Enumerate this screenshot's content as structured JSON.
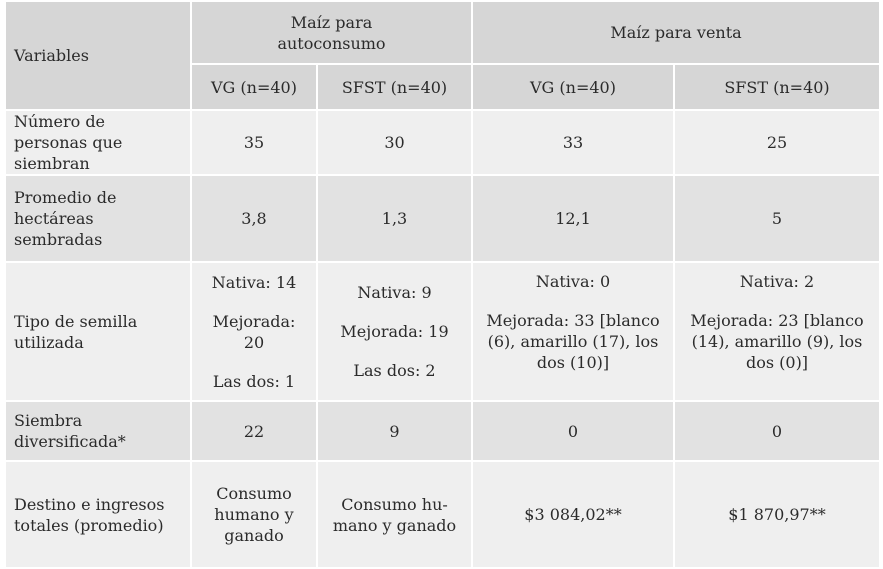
{
  "header": {
    "variables": "Variables",
    "group1": "Maíz para autoconsumo",
    "group2": "Maíz para venta",
    "sub": [
      "VG (n=40)",
      "SFST (n=40)",
      "VG (n=40)",
      "SFST (n=40)"
    ]
  },
  "rows": [
    {
      "label": "Número de personas que siembran",
      "cells": [
        "35",
        "30",
        "33",
        "25"
      ]
    },
    {
      "label": "Promedio de hectáreas sembradas",
      "cells": [
        "3,8",
        "1,3",
        "12,1",
        "5"
      ]
    },
    {
      "label": "Tipo de semilla utilizada",
      "cells": [
        [
          "Nativa: 14",
          "Mejorada: 20",
          "Las dos: 1"
        ],
        [
          "Nativa: 9",
          "Mejorada: 19",
          "Las dos: 2"
        ],
        [
          "Nativa: 0",
          "Mejorada: 33 [blanco (6), amarillo (17), los dos (10)]"
        ],
        [
          "Nativa: 2",
          "Mejorada: 23 [blanco (14), amarillo (9), los dos (0)]"
        ]
      ]
    },
    {
      "label": "Siembra diversificada*",
      "cells": [
        "22",
        "9",
        "0",
        "0"
      ]
    },
    {
      "label": "Destino e ingresos totales (promedio)",
      "cells": [
        "Consumo humano y ganado",
        "Consumo hu-mano y ganado",
        "$3 084,02**",
        "$1 870,97**"
      ]
    }
  ]
}
